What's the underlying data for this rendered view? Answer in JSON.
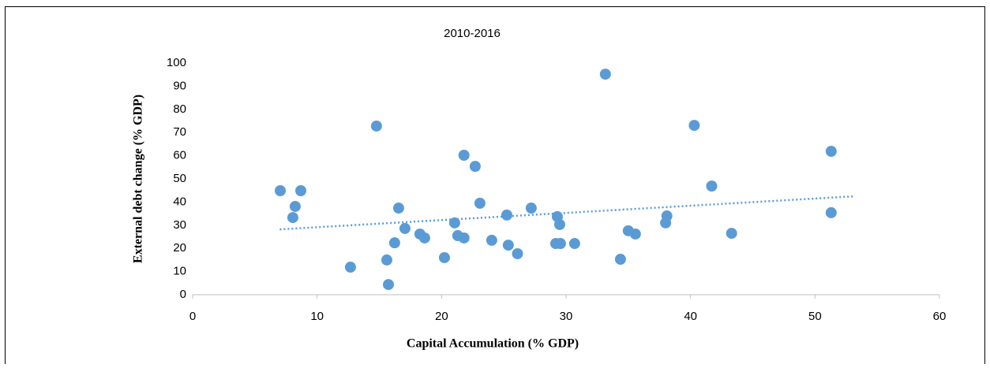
{
  "chart_data": {
    "type": "scatter",
    "title": "2010-2016",
    "xlabel": "Capital Accumulation (% GDP)",
    "ylabel": "External debt change (% GDP)",
    "color": "#5b9bd5",
    "x": [
      7.04,
      8.24,
      8.69,
      8.05,
      12.68,
      14.77,
      15.6,
      15.73,
      16.23,
      16.55,
      17.06,
      18.26,
      18.64,
      20.23,
      21.05,
      21.3,
      21.8,
      21.8,
      22.7,
      23.08,
      24.03,
      25.24,
      25.36,
      26.1,
      27.2,
      29.17,
      29.3,
      29.49,
      29.55,
      30.69,
      33.16,
      34.37,
      35.0,
      35.57,
      38.0,
      38.1,
      40.3,
      41.7,
      43.3,
      51.3,
      51.3
    ],
    "values": [
      44.9,
      38.1,
      44.9,
      33.3,
      11.9,
      72.8,
      15.0,
      4.4,
      22.4,
      37.4,
      28.6,
      26.2,
      24.5,
      16.0,
      31.0,
      25.5,
      24.5,
      60.2,
      55.4,
      39.5,
      23.5,
      34.4,
      21.4,
      17.7,
      37.4,
      22.1,
      33.7,
      30.3,
      22.1,
      22.1,
      95.2,
      15.3,
      27.6,
      26.2,
      31.0,
      34.0,
      73.1,
      46.9,
      26.5,
      61.9,
      35.4
    ],
    "trendline": {
      "x": [
        7,
        53.2
      ],
      "values": [
        28.2,
        42.5
      ],
      "style": "dotted"
    },
    "xlim": [
      0,
      60
    ],
    "xticks": [
      0,
      10,
      20,
      30,
      40,
      50,
      60
    ],
    "ylim": [
      0,
      100
    ],
    "yticks": [
      0,
      10,
      20,
      30,
      40,
      50,
      60,
      70,
      80,
      90,
      100
    ],
    "grid": false
  }
}
